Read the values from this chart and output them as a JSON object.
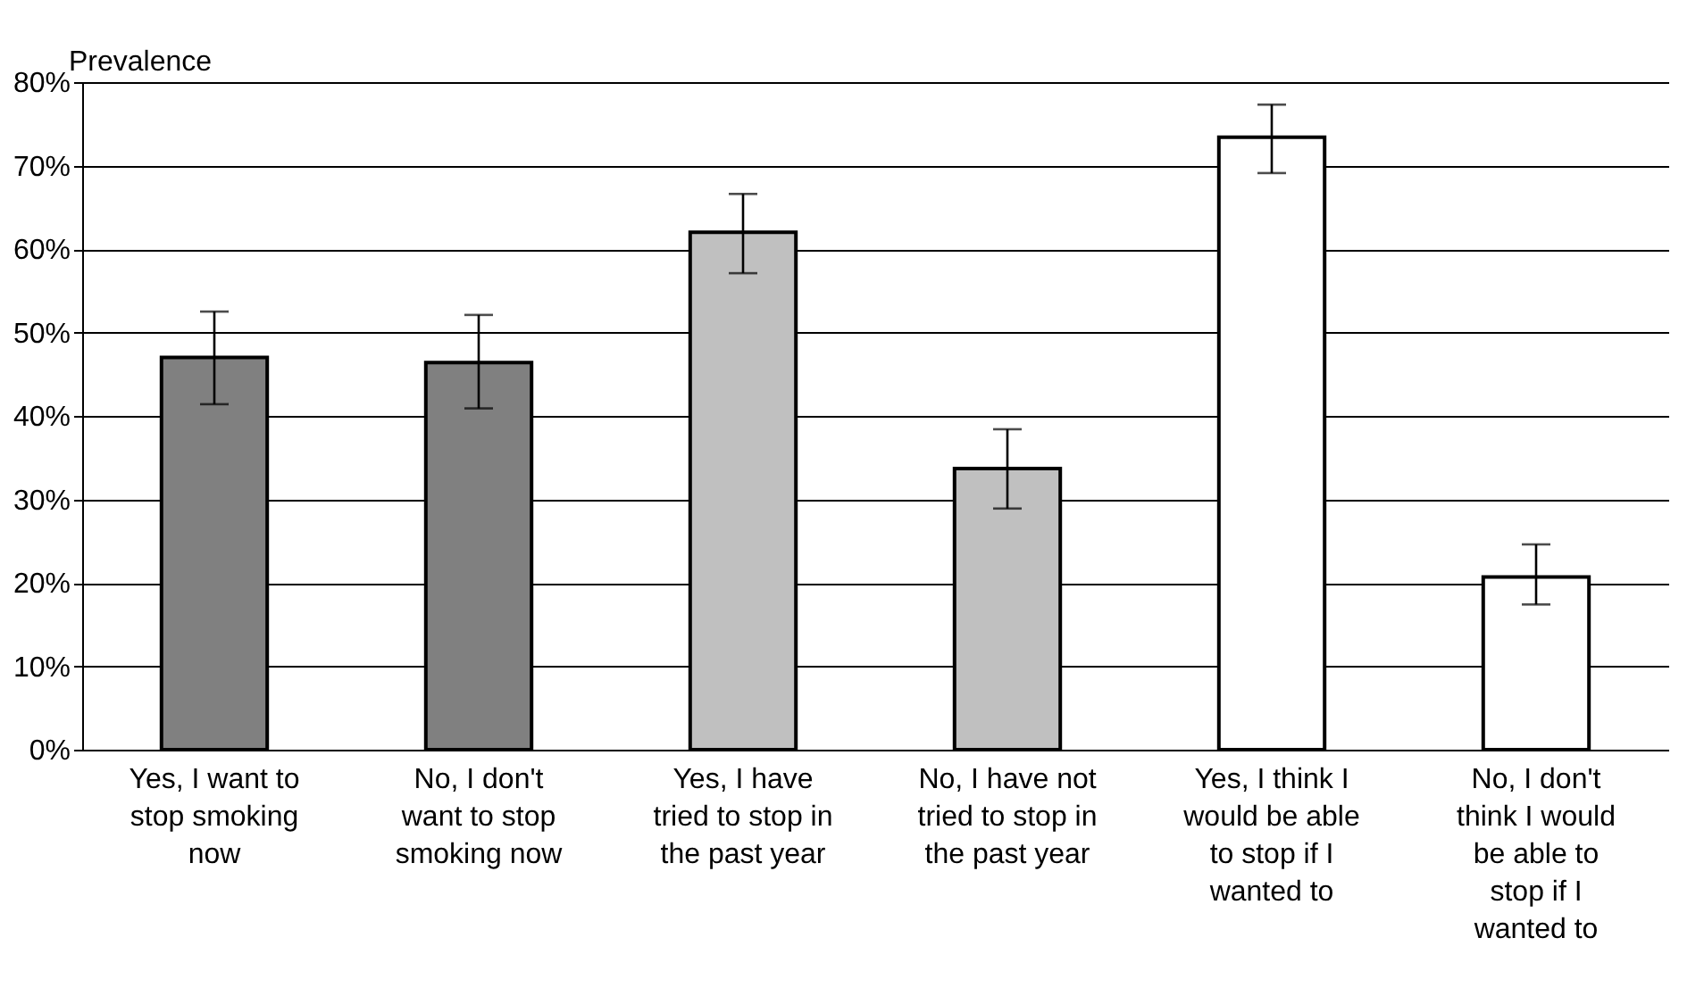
{
  "chart_data": {
    "type": "bar",
    "ylabel": "Prevalence",
    "categories": [
      "Yes, I want to\nstop smoking\nnow",
      "No, I don't\nwant to stop\nsmoking now",
      "Yes, I have\ntried to stop in\nthe past year",
      "No, I have not\ntried to stop in\nthe past year",
      "Yes, I think I\nwould be able\nto stop if I\nwanted to",
      "No, I don't\nthink I would\nbe able to\nstop if I\nwanted to"
    ],
    "values": [
      47,
      46.4,
      62,
      33.7,
      73.4,
      20.7
    ],
    "colors": [
      "#808080",
      "#808080",
      "#c0c0c0",
      "#c0c0c0",
      "#ffffff",
      "#ffffff"
    ],
    "errors": [
      [
        41.4,
        52.5
      ],
      [
        40.9,
        52.1
      ],
      [
        57.1,
        66.6
      ],
      [
        28.9,
        38.4
      ],
      [
        69.1,
        77.3
      ],
      [
        17.4,
        24.6
      ]
    ],
    "ylim": [
      0,
      80
    ],
    "yticks": [
      {
        "value": 0,
        "label": "0%"
      },
      {
        "value": 10,
        "label": "10%"
      },
      {
        "value": 20,
        "label": "20%"
      },
      {
        "value": 30,
        "label": "30%"
      },
      {
        "value": 40,
        "label": "40%"
      },
      {
        "value": 50,
        "label": "50%"
      },
      {
        "value": 60,
        "label": "60%"
      },
      {
        "value": 70,
        "label": "70%"
      },
      {
        "value": 80,
        "label": "80%"
      }
    ],
    "grid": "y"
  }
}
